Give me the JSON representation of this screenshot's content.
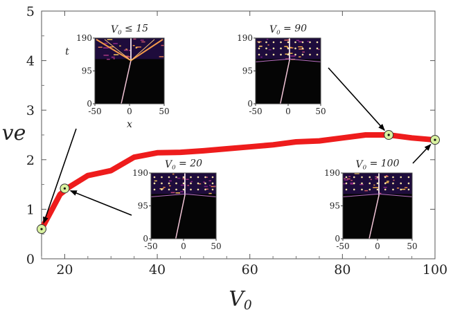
{
  "chart_data": {
    "type": "line",
    "xlabel": "V0",
    "ylabel": "ve",
    "xlim": [
      15,
      100
    ],
    "ylim": [
      0,
      5
    ],
    "x_ticks": [
      20,
      40,
      60,
      80,
      100
    ],
    "y_ticks": [
      0,
      1,
      2,
      3,
      4,
      5
    ],
    "grid": false,
    "series": [
      {
        "color": "#ee1c1c",
        "x": [
          15,
          17,
          19,
          21,
          25,
          30,
          35,
          40,
          45,
          50,
          55,
          60,
          65,
          70,
          75,
          80,
          85,
          90,
          95,
          100
        ],
        "y": [
          0.6,
          0.95,
          1.3,
          1.45,
          1.68,
          1.78,
          2.05,
          2.14,
          2.15,
          2.18,
          2.22,
          2.26,
          2.3,
          2.36,
          2.38,
          2.44,
          2.5,
          2.5,
          2.44,
          2.4
        ]
      }
    ],
    "markers": [
      {
        "x": 15,
        "y": 0.6
      },
      {
        "x": 20,
        "y": 1.42
      },
      {
        "x": 90,
        "y": 2.5
      },
      {
        "x": 100,
        "y": 2.4
      }
    ],
    "insets": [
      {
        "title": "V0 ≤ 15",
        "xlabel": "x",
        "ylabel": "t",
        "x_ticks": [
          "-50",
          "0",
          "50"
        ],
        "y_ticks": [
          "0",
          "95",
          "190"
        ],
        "target": 0
      },
      {
        "title": "V0 = 90",
        "xlabel": "",
        "ylabel": "",
        "x_ticks": [
          "-50",
          "0",
          "50"
        ],
        "y_ticks": [
          "0",
          "95",
          "190"
        ],
        "target": 2
      },
      {
        "title": "V0 = 20",
        "xlabel": "",
        "ylabel": "",
        "x_ticks": [
          "-50",
          "0",
          "50"
        ],
        "y_ticks": [
          "0",
          "95",
          "190"
        ],
        "target": 1
      },
      {
        "title": "V0 = 100",
        "xlabel": "",
        "ylabel": "",
        "x_ticks": [
          "-50",
          "0",
          "50"
        ],
        "y_ticks": [
          "0",
          "95",
          "190"
        ],
        "target": 3
      }
    ]
  }
}
